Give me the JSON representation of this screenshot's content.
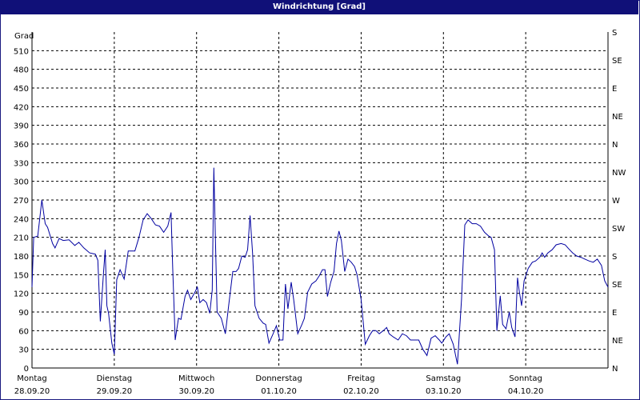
{
  "window": {
    "title": "Windrichtung [Grad]"
  },
  "chart_data": {
    "type": "line",
    "title": "Windrichtung [Grad]",
    "ylabel": "Grad",
    "ylim": [
      0,
      540
    ],
    "yticks": [
      0,
      30,
      60,
      90,
      120,
      150,
      180,
      210,
      240,
      270,
      300,
      330,
      360,
      390,
      420,
      450,
      480,
      510
    ],
    "right_axis": {
      "labels": [
        {
          "value": 0,
          "label": "N"
        },
        {
          "value": 45,
          "label": "NE"
        },
        {
          "value": 90,
          "label": "E"
        },
        {
          "value": 135,
          "label": "SE"
        },
        {
          "value": 180,
          "label": "S"
        },
        {
          "value": 225,
          "label": "SW"
        },
        {
          "value": 270,
          "label": "W"
        },
        {
          "value": 315,
          "label": "NW"
        },
        {
          "value": 360,
          "label": "N"
        },
        {
          "value": 405,
          "label": "NE"
        },
        {
          "value": 450,
          "label": "E"
        },
        {
          "value": 495,
          "label": "SE"
        },
        {
          "value": 540,
          "label": "S"
        }
      ]
    },
    "xlim": [
      0,
      7
    ],
    "x_ticks": [
      {
        "x": 0,
        "day": "Montag",
        "date": "28.09.20"
      },
      {
        "x": 1,
        "day": "Dienstag",
        "date": "29.09.20"
      },
      {
        "x": 2,
        "day": "Mittwoch",
        "date": "30.09.20"
      },
      {
        "x": 3,
        "day": "Donnerstag",
        "date": "01.10.20"
      },
      {
        "x": 4,
        "day": "Freitag",
        "date": "02.10.20"
      },
      {
        "x": 5,
        "day": "Samstag",
        "date": "03.10.20"
      },
      {
        "x": 6,
        "day": "Sonntag",
        "date": "04.10.20"
      }
    ],
    "grid": true,
    "series": [
      {
        "color": "#0000a0",
        "points": [
          [
            0.0,
            130
          ],
          [
            0.02,
            210
          ],
          [
            0.07,
            212
          ],
          [
            0.12,
            270
          ],
          [
            0.16,
            232
          ],
          [
            0.19,
            226
          ],
          [
            0.25,
            200
          ],
          [
            0.28,
            193
          ],
          [
            0.33,
            208
          ],
          [
            0.38,
            205
          ],
          [
            0.45,
            206
          ],
          [
            0.52,
            197
          ],
          [
            0.57,
            202
          ],
          [
            0.63,
            193
          ],
          [
            0.7,
            185
          ],
          [
            0.77,
            183
          ],
          [
            0.8,
            173
          ],
          [
            0.83,
            75
          ],
          [
            0.87,
            155
          ],
          [
            0.89,
            190
          ],
          [
            0.91,
            100
          ],
          [
            0.93,
            88
          ],
          [
            0.97,
            40
          ],
          [
            1.0,
            22
          ],
          [
            1.03,
            142
          ],
          [
            1.07,
            158
          ],
          [
            1.12,
            143
          ],
          [
            1.17,
            188
          ],
          [
            1.25,
            188
          ],
          [
            1.3,
            210
          ],
          [
            1.35,
            238
          ],
          [
            1.4,
            248
          ],
          [
            1.45,
            240
          ],
          [
            1.5,
            230
          ],
          [
            1.55,
            228
          ],
          [
            1.6,
            218
          ],
          [
            1.65,
            228
          ],
          [
            1.69,
            250
          ],
          [
            1.71,
            160
          ],
          [
            1.74,
            45
          ],
          [
            1.78,
            80
          ],
          [
            1.81,
            78
          ],
          [
            1.86,
            115
          ],
          [
            1.89,
            125
          ],
          [
            1.93,
            110
          ],
          [
            1.98,
            122
          ],
          [
            2.01,
            130
          ],
          [
            2.04,
            105
          ],
          [
            2.08,
            110
          ],
          [
            2.12,
            105
          ],
          [
            2.16,
            88
          ],
          [
            2.19,
            125
          ],
          [
            2.21,
            322
          ],
          [
            2.23,
            200
          ],
          [
            2.25,
            90
          ],
          [
            2.3,
            80
          ],
          [
            2.35,
            55
          ],
          [
            2.39,
            100
          ],
          [
            2.44,
            155
          ],
          [
            2.48,
            155
          ],
          [
            2.51,
            160
          ],
          [
            2.55,
            180
          ],
          [
            2.59,
            178
          ],
          [
            2.62,
            190
          ],
          [
            2.65,
            245
          ],
          [
            2.68,
            185
          ],
          [
            2.71,
            100
          ],
          [
            2.76,
            80
          ],
          [
            2.81,
            72
          ],
          [
            2.84,
            70
          ],
          [
            2.88,
            40
          ],
          [
            2.93,
            55
          ],
          [
            2.97,
            68
          ],
          [
            3.01,
            45
          ],
          [
            3.05,
            45
          ],
          [
            3.08,
            135
          ],
          [
            3.11,
            95
          ],
          [
            3.15,
            138
          ],
          [
            3.18,
            110
          ],
          [
            3.23,
            55
          ],
          [
            3.28,
            70
          ],
          [
            3.31,
            80
          ],
          [
            3.35,
            122
          ],
          [
            3.4,
            135
          ],
          [
            3.45,
            140
          ],
          [
            3.49,
            148
          ],
          [
            3.53,
            158
          ],
          [
            3.56,
            158
          ],
          [
            3.59,
            115
          ],
          [
            3.63,
            138
          ],
          [
            3.67,
            155
          ],
          [
            3.7,
            200
          ],
          [
            3.73,
            220
          ],
          [
            3.76,
            205
          ],
          [
            3.8,
            155
          ],
          [
            3.84,
            175
          ],
          [
            3.88,
            170
          ],
          [
            3.92,
            163
          ],
          [
            3.95,
            150
          ],
          [
            4.0,
            110
          ],
          [
            4.05,
            38
          ],
          [
            4.1,
            52
          ],
          [
            4.14,
            60
          ],
          [
            4.18,
            60
          ],
          [
            4.22,
            55
          ],
          [
            4.27,
            60
          ],
          [
            4.31,
            65
          ],
          [
            4.34,
            55
          ],
          [
            4.39,
            50
          ],
          [
            4.45,
            45
          ],
          [
            4.5,
            55
          ],
          [
            4.55,
            52
          ],
          [
            4.6,
            45
          ],
          [
            4.65,
            45
          ],
          [
            4.7,
            45
          ],
          [
            4.75,
            30
          ],
          [
            4.8,
            20
          ],
          [
            4.85,
            48
          ],
          [
            4.9,
            52
          ],
          [
            4.95,
            45
          ],
          [
            4.98,
            40
          ],
          [
            5.03,
            50
          ],
          [
            5.07,
            55
          ],
          [
            5.12,
            38
          ],
          [
            5.17,
            6
          ],
          [
            5.22,
            110
          ],
          [
            5.26,
            230
          ],
          [
            5.3,
            238
          ],
          [
            5.35,
            232
          ],
          [
            5.4,
            232
          ],
          [
            5.45,
            228
          ],
          [
            5.5,
            218
          ],
          [
            5.55,
            212
          ],
          [
            5.58,
            210
          ],
          [
            5.62,
            190
          ],
          [
            5.65,
            60
          ],
          [
            5.69,
            116
          ],
          [
            5.72,
            70
          ],
          [
            5.76,
            63
          ],
          [
            5.8,
            90
          ],
          [
            5.83,
            65
          ],
          [
            5.87,
            50
          ],
          [
            5.9,
            145
          ],
          [
            5.92,
            125
          ],
          [
            5.95,
            100
          ],
          [
            5.98,
            140
          ],
          [
            6.03,
            160
          ],
          [
            6.08,
            170
          ],
          [
            6.12,
            172
          ],
          [
            6.17,
            178
          ],
          [
            6.2,
            185
          ],
          [
            6.23,
            178
          ],
          [
            6.27,
            185
          ],
          [
            6.32,
            190
          ],
          [
            6.37,
            198
          ],
          [
            6.43,
            200
          ],
          [
            6.48,
            198
          ],
          [
            6.52,
            192
          ],
          [
            6.57,
            185
          ],
          [
            6.62,
            180
          ],
          [
            6.67,
            178
          ],
          [
            6.72,
            175
          ],
          [
            6.77,
            172
          ],
          [
            6.82,
            170
          ],
          [
            6.87,
            175
          ],
          [
            6.92,
            165
          ],
          [
            6.96,
            140
          ],
          [
            7.0,
            130
          ]
        ]
      }
    ]
  }
}
